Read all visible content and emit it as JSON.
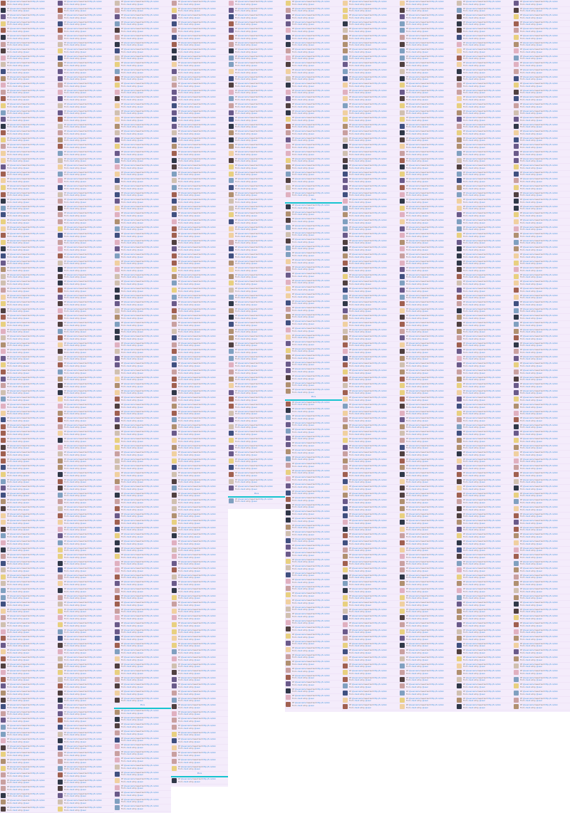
{
  "entry": {
    "rt": "RT",
    "user": "@username",
    "body": "tweet text",
    "link": "http://t.co/link",
    "from": "From",
    "client": "client",
    "at": "at",
    "by": "by",
    "by_user": "@user"
  },
  "pager": {
    "more": "More",
    "page": "1"
  },
  "colors": {
    "background": "#f4ecfb",
    "link": "#3a8fd8",
    "divider": "#18c4d0"
  }
}
